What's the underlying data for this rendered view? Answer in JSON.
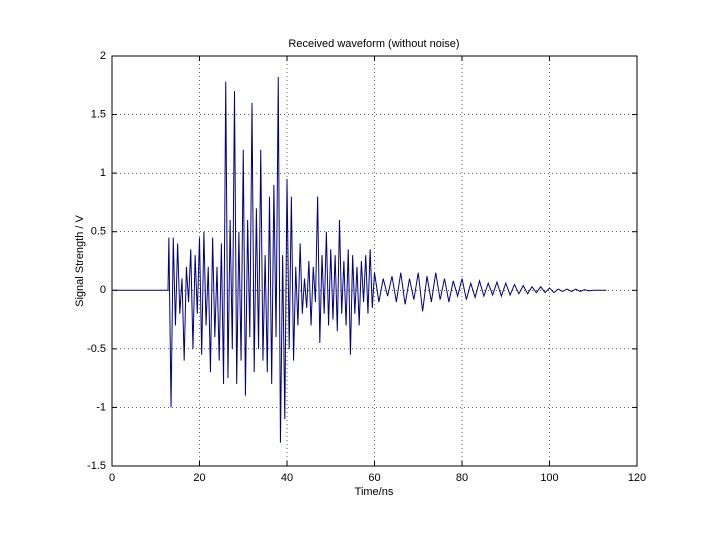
{
  "chart_data": {
    "type": "line",
    "title": "Received waveform (without noise)",
    "x_label": "Time/ns",
    "y_label": "Signal Strength / V",
    "xlim": [
      0,
      120
    ],
    "xticks": [
      0,
      20,
      40,
      60,
      80,
      100,
      120
    ],
    "ylim": [
      -1.5,
      2
    ],
    "yticks": [
      -1.5,
      -1,
      -0.5,
      0,
      0.5,
      1,
      1.5,
      2
    ],
    "grid": true,
    "x": [
      0,
      12.8,
      13,
      13.5,
      14,
      14.5,
      15,
      15.5,
      16,
      16.5,
      17,
      17.5,
      18,
      18.5,
      19,
      19.5,
      20,
      20.5,
      21,
      21.5,
      22,
      22.5,
      23,
      23.5,
      24,
      24.5,
      25,
      25.5,
      26,
      26.5,
      27,
      27.5,
      28,
      28.5,
      29,
      29.5,
      30,
      30.5,
      31,
      31.5,
      32,
      32.5,
      33,
      33.5,
      34,
      34.5,
      35,
      35.5,
      36,
      36.5,
      37,
      37.5,
      38,
      38.5,
      39,
      39.5,
      40,
      40.5,
      41,
      41.5,
      42,
      42.5,
      43,
      43.5,
      44,
      44.5,
      45,
      45.5,
      46,
      46.5,
      47,
      47.5,
      48,
      48.5,
      49,
      49.5,
      50,
      50.5,
      51,
      51.5,
      52,
      52.5,
      53,
      53.5,
      54,
      54.5,
      55,
      55.5,
      56,
      56.5,
      57,
      57.5,
      58,
      58.5,
      59,
      59.5,
      60,
      61,
      62,
      63,
      64,
      65,
      66,
      67,
      68,
      69,
      70,
      71,
      72,
      73,
      74,
      75,
      76,
      77,
      78,
      79,
      80,
      81,
      82,
      83,
      84,
      85,
      86,
      87,
      88,
      89,
      90,
      91,
      92,
      93,
      94,
      95,
      96,
      97,
      98,
      99,
      100,
      101,
      102,
      103,
      104,
      105,
      106,
      107,
      108,
      109,
      110,
      111,
      112,
      113
    ],
    "series": [
      {
        "name": "waveform",
        "color": "#000080",
        "values": [
          0,
          0,
          0.45,
          -1.0,
          0.45,
          -0.3,
          0.4,
          -0.2,
          0.1,
          -0.6,
          0.2,
          -0.1,
          0.35,
          -0.5,
          0.3,
          -0.2,
          0.45,
          -0.55,
          0.5,
          -0.3,
          0.2,
          -0.7,
          0.45,
          -0.4,
          0.2,
          -0.6,
          0.4,
          -0.8,
          1.78,
          -0.75,
          0.6,
          -0.5,
          1.7,
          -0.8,
          0.5,
          -0.6,
          1.2,
          -0.9,
          0.6,
          -0.4,
          1.6,
          -0.7,
          0.7,
          -0.5,
          1.2,
          -0.6,
          0.3,
          -0.7,
          0.8,
          -0.8,
          0.9,
          -0.4,
          1.82,
          -1.3,
          0.3,
          -1.1,
          0.95,
          -0.5,
          0.8,
          -0.6,
          0.2,
          -0.3,
          0.4,
          -0.2,
          0.1,
          -0.15,
          0.25,
          -0.3,
          0.2,
          -0.1,
          0.8,
          -0.45,
          0.3,
          -0.2,
          0.5,
          -0.3,
          0.35,
          -0.25,
          0.3,
          -0.35,
          0.6,
          -0.2,
          0.25,
          -0.3,
          0.35,
          -0.55,
          0.3,
          -0.2,
          0.2,
          -0.3,
          0.25,
          -0.1,
          0.3,
          -0.2,
          0.35,
          -0.15,
          0.15,
          -0.1,
          0.1,
          -0.05,
          0.12,
          -0.1,
          0.15,
          -0.12,
          0.1,
          -0.08,
          0.15,
          -0.18,
          0.12,
          -0.1,
          0.15,
          -0.08,
          0.1,
          -0.1,
          0.08,
          -0.05,
          0.1,
          -0.08,
          0.06,
          -0.06,
          0.08,
          -0.05,
          0.06,
          -0.04,
          0.07,
          -0.05,
          0.06,
          -0.04,
          0.05,
          -0.03,
          0.04,
          -0.03,
          0.03,
          -0.02,
          0.03,
          -0.02,
          0.02,
          -0.02,
          0.01,
          -0.01,
          0.01,
          -0.01,
          0.01,
          -0.01,
          0.005,
          -0.005,
          0,
          0,
          0,
          0
        ]
      }
    ]
  }
}
